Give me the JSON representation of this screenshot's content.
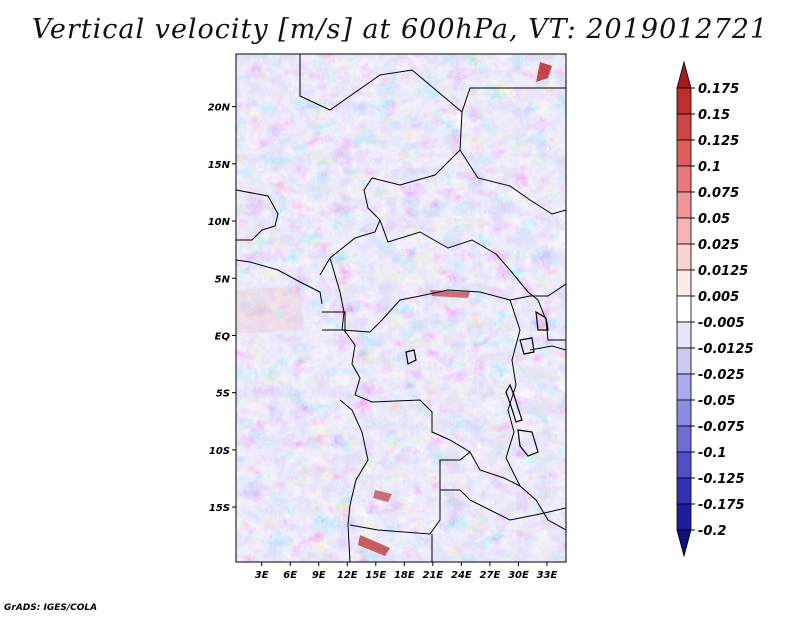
{
  "title": "Vertical velocity [m/s] at 600hPa, VT: 2019012721",
  "credit": "GrADS: IGES/COLA",
  "map": {
    "variable": "Vertical velocity",
    "level": "600hPa",
    "valid_time": "2019012721",
    "lat_labels": [
      "20N",
      "15N",
      "10N",
      "5N",
      "EQ",
      "5S",
      "10S",
      "15S"
    ],
    "lat_values": [
      20,
      15,
      10,
      5,
      0,
      -5,
      -10,
      -15
    ],
    "lon_labels": [
      "3E",
      "6E",
      "9E",
      "12E",
      "15E",
      "18E",
      "21E",
      "24E",
      "27E",
      "30E",
      "33E"
    ],
    "lon_values": [
      3,
      6,
      9,
      12,
      15,
      18,
      21,
      24,
      27,
      30,
      33
    ],
    "lon_range": [
      0.3,
      35.0
    ],
    "lat_range": [
      -19.8,
      24.6
    ]
  },
  "colorbar": {
    "labels": [
      "0.175",
      "0.15",
      "0.125",
      "0.1",
      "0.075",
      "0.05",
      "0.025",
      "0.0125",
      "0.005",
      "-0.005",
      "-0.0125",
      "-0.025",
      "-0.05",
      "-0.075",
      "-0.1",
      "-0.125",
      "-0.175",
      "-0.2"
    ],
    "colors": [
      "#a51c1c",
      "#bf2d2d",
      "#cf4444",
      "#dc5e5e",
      "#e67a7a",
      "#ee9696",
      "#f5b4b4",
      "#fad2d2",
      "#fdeaea",
      "#ffffff",
      "#e6e6fa",
      "#c9c9f2",
      "#aaaaea",
      "#8c8ce0",
      "#6d6dd4",
      "#4f4fc6",
      "#3232b4",
      "#1c1c9c",
      "#11117a"
    ]
  }
}
